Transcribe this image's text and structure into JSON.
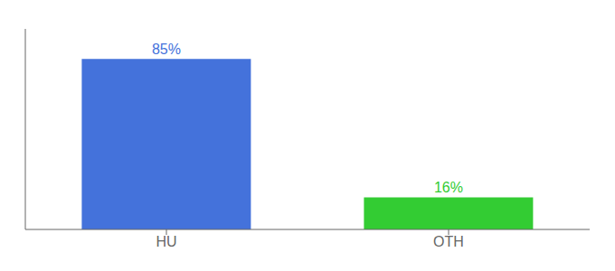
{
  "chart_data": {
    "type": "bar",
    "categories": [
      "HU",
      "OTH"
    ],
    "values": [
      85,
      16
    ],
    "value_labels": [
      "85%",
      "16%"
    ],
    "colors": [
      "#4472db",
      "#33cc33"
    ],
    "ylim": [
      0,
      100
    ],
    "yticks": [],
    "data_labels": true,
    "tick_labels": "x",
    "grid": false
  }
}
